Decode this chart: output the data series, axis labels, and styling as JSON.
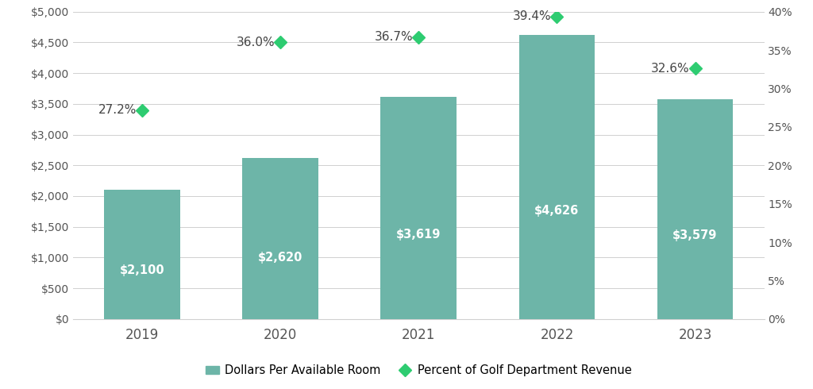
{
  "years": [
    "2019",
    "2020",
    "2021",
    "2022",
    "2023"
  ],
  "bar_values": [
    2100,
    2620,
    3619,
    4626,
    3579
  ],
  "bar_labels": [
    "$2,100",
    "$2,620",
    "$3,619",
    "$4,626",
    "$3,579"
  ],
  "pct_values": [
    27.2,
    36.0,
    36.7,
    39.4,
    32.6
  ],
  "pct_labels": [
    "27.2%",
    "36.0%",
    "36.7%",
    "39.4%",
    "32.6%"
  ],
  "bar_color": "#6db5a8",
  "diamond_color": "#2ecc71",
  "pct_text_color": "#444444",
  "bar_text_color": "#ffffff",
  "background_color": "#ffffff",
  "grid_color": "#d0d0d0",
  "axis_label_color": "#555555",
  "ylim_left": [
    0,
    5000
  ],
  "ylim_right": [
    0,
    40
  ],
  "yticks_left": [
    0,
    500,
    1000,
    1500,
    2000,
    2500,
    3000,
    3500,
    4000,
    4500,
    5000
  ],
  "ytick_labels_left": [
    "$0",
    "$500",
    "$1,000",
    "$1,500",
    "$2,000",
    "$2,500",
    "$3,000",
    "$3,500",
    "$4,000",
    "$4,500",
    "$5,000"
  ],
  "yticks_right": [
    0,
    5,
    10,
    15,
    20,
    25,
    30,
    35,
    40
  ],
  "ytick_labels_right": [
    "0%",
    "5%",
    "10%",
    "15%",
    "20%",
    "25%",
    "30%",
    "35%",
    "40%"
  ],
  "legend_bar_label": "Dollars Per Available Room",
  "legend_diamond_label": "Percent of Golf Department Revenue",
  "bar_width": 0.55
}
